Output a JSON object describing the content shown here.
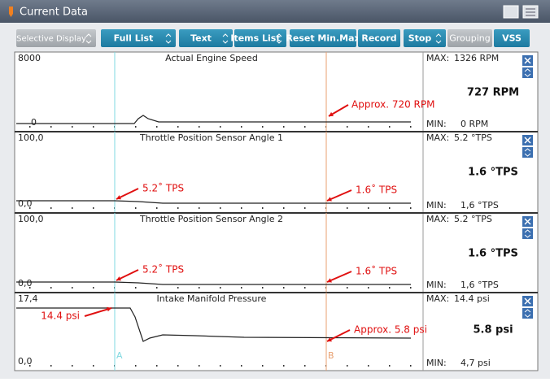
{
  "header": {
    "title": "Current Data"
  },
  "toolbar": [
    "Selective Display",
    "Full List",
    "Text",
    "Items List",
    "Reset Min.Max",
    "Record",
    "Stop",
    "Grouping",
    "VSS"
  ],
  "cursors": [
    "A",
    "B"
  ],
  "panels": [
    {
      "scale_max": "8000",
      "title": "Actual Engine Speed",
      "scale_min": "0",
      "max_label": "MAX:",
      "max": "1326 RPM",
      "current": "727 RPM",
      "min_label": "MIN:",
      "min": "0 RPM",
      "annotations": [
        "Approx. 720 RPM"
      ]
    },
    {
      "scale_max": "100,0",
      "title": "Throttle Position Sensor Angle 1",
      "scale_min": "0,0",
      "max_label": "MAX:",
      "max": "5.2 °TPS",
      "current": "1.6 °TPS",
      "min_label": "MIN:",
      "min": "1,6 °TPS",
      "annotations": [
        "5.2˚ TPS",
        "1.6˚ TPS"
      ]
    },
    {
      "scale_max": "100,0",
      "title": "Throttle Position Sensor Angle 2",
      "scale_min": "0,0",
      "max_label": "MAX:",
      "max": "5.2 °TPS",
      "current": "1.6 °TPS",
      "min_label": "MIN:",
      "min": "1,6 °TPS",
      "annotations": [
        "5.2˚ TPS",
        "1.6˚ TPS"
      ]
    },
    {
      "scale_max": "17,4",
      "title": "Intake Manifold Pressure",
      "scale_min": "0,0",
      "max_label": "MAX:",
      "max": "14.4 psi",
      "current": "5.8 psi",
      "min_label": "MIN:",
      "min": "4,7 psi",
      "annotations": [
        "14.4 psi",
        "Approx. 5.8 psi"
      ]
    }
  ]
}
